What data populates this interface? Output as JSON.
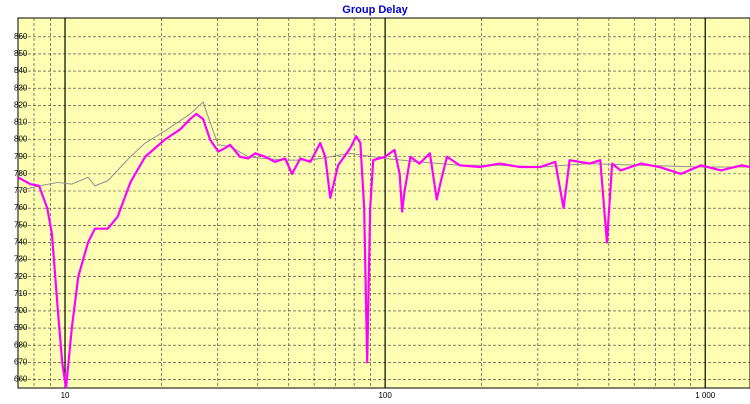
{
  "chart_data": {
    "type": "line",
    "title": "Group Delay",
    "log_x": true,
    "grid": true,
    "background": "#ffffb4",
    "xlim": [
      7.13,
      1380
    ],
    "ylim": [
      655,
      871
    ],
    "xticks": [
      10,
      100,
      {
        "value": 1000,
        "label": "1 000"
      }
    ],
    "xminorticks": [
      8,
      9,
      20,
      30,
      40,
      50,
      60,
      70,
      80,
      90,
      200,
      300,
      400,
      500,
      600,
      700,
      800,
      900
    ],
    "yticks": [
      660,
      670,
      680,
      690,
      700,
      710,
      720,
      730,
      740,
      750,
      760,
      770,
      780,
      790,
      800,
      810,
      820,
      830,
      840,
      850,
      860
    ],
    "series": [
      {
        "color": "#909090",
        "width": 1,
        "x": [
          7.13,
          8.3,
          9.5,
          10.5,
          11.8,
          12.4,
          13.6,
          16,
          17.8,
          20.5,
          24.6,
          27,
          28.4,
          30.1,
          32.8,
          37.3,
          42.2,
          48.7,
          58.4,
          77.8,
          100,
          128,
          171,
          228,
          305,
          436,
          630,
          970,
          1380
        ],
        "values": [
          770,
          773,
          775,
          774,
          778,
          773,
          776,
          790,
          798,
          805,
          815,
          822,
          810,
          797,
          796,
          790,
          789,
          788,
          788,
          792,
          789,
          787,
          785,
          785,
          784,
          786,
          785,
          784,
          784
        ]
      },
      {
        "color": "#ff00ff",
        "width": 2.2,
        "x": [
          7.13,
          7.8,
          8.3,
          8.8,
          9.1,
          9.5,
          9.8,
          10.07,
          10.5,
          11,
          11.8,
          12.4,
          13.6,
          14.6,
          16,
          17.8,
          20.5,
          22.9,
          24.6,
          25.7,
          27,
          28.4,
          30.1,
          31.6,
          32.8,
          35.2,
          37.3,
          39.3,
          42.2,
          45.3,
          48.7,
          51.2,
          54.3,
          58.4,
          62.7,
          65,
          67.4,
          71.3,
          77.8,
          81.2,
          83.7,
          86,
          87.9,
          89.8,
          91.8,
          100,
          107,
          111,
          113,
          115,
          120,
          128,
          138,
          145,
          149,
          156,
          171,
          197,
          228,
          264,
          305,
          340,
          361,
          377,
          436,
          470,
          493,
          512,
          544,
          630,
          720,
          840,
          970,
          1120,
          1300,
          1380
        ],
        "values": [
          778,
          774,
          773,
          760,
          745,
          700,
          670,
          655,
          690,
          720,
          740,
          748,
          748,
          755,
          775,
          790,
          800,
          806,
          812,
          815,
          812,
          800,
          793,
          795,
          797,
          790,
          789,
          792,
          790,
          787,
          789,
          780,
          789,
          787,
          798,
          790,
          766,
          785,
          795,
          802,
          798,
          760,
          670,
          760,
          788,
          790,
          794,
          780,
          758,
          770,
          790,
          786,
          792,
          765,
          775,
          790,
          785,
          784,
          786,
          784,
          784,
          787,
          760,
          788,
          786,
          788,
          740,
          786,
          782,
          786,
          784,
          780,
          785,
          782,
          785,
          784
        ]
      }
    ]
  }
}
